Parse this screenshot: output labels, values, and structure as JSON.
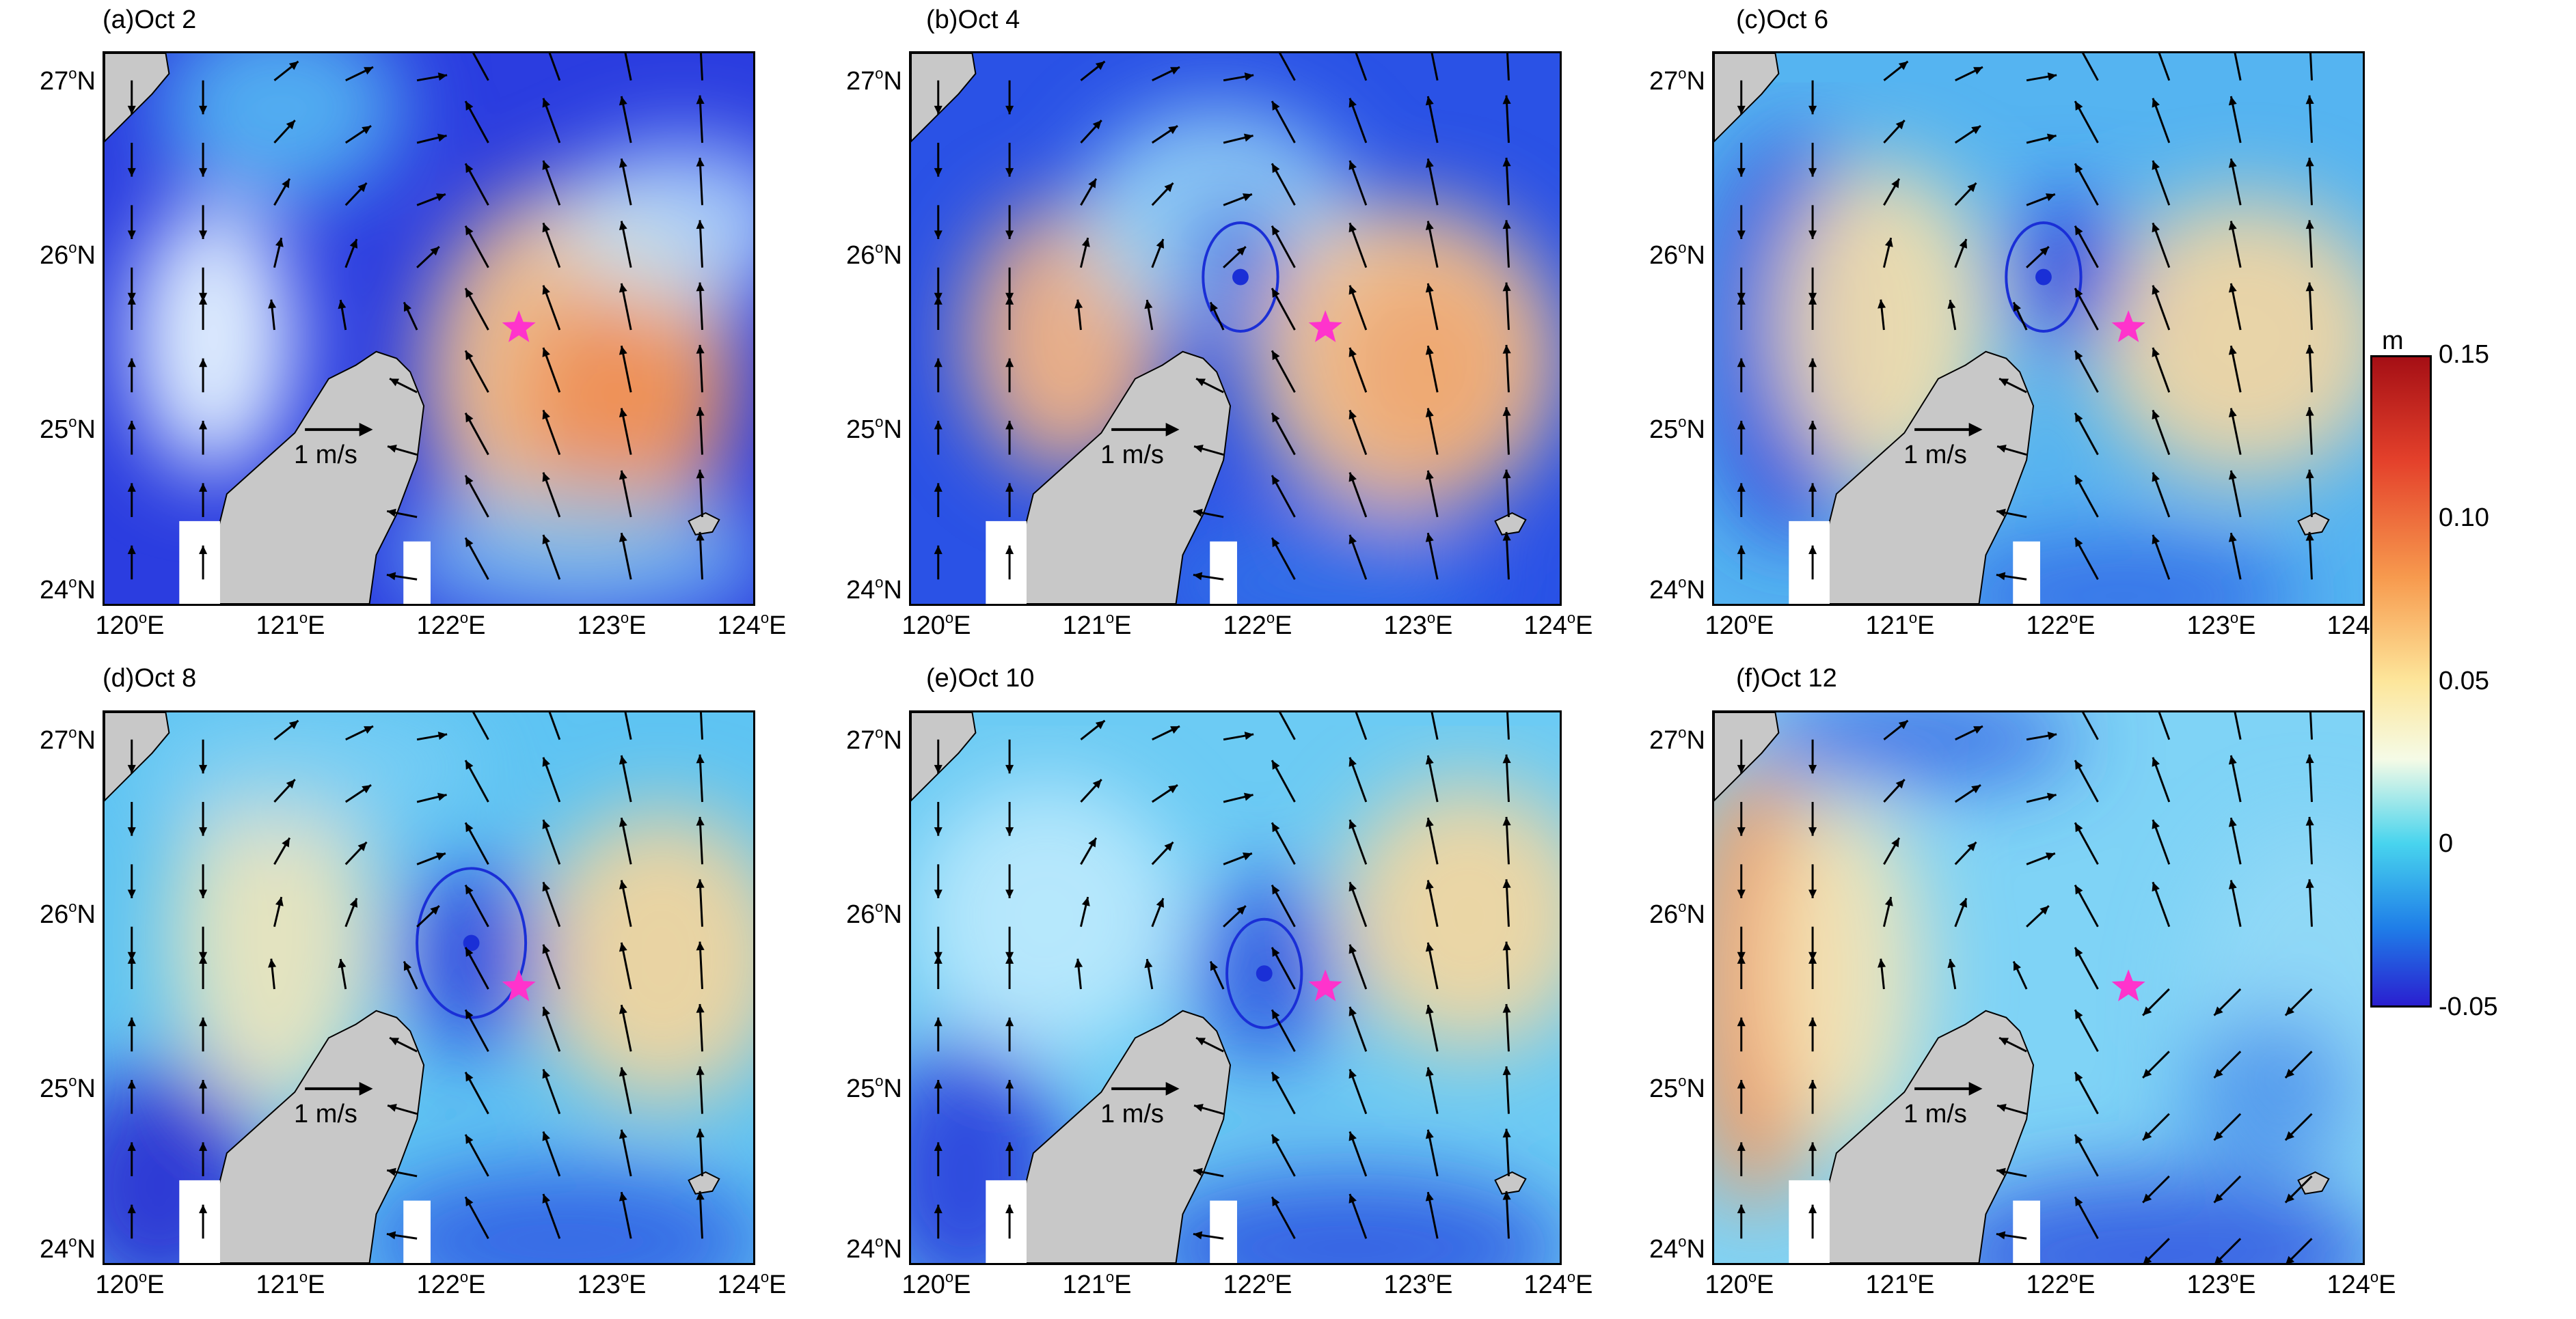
{
  "panels": [
    {
      "title": "(a)Oct 2"
    },
    {
      "title": "(b)Oct 4"
    },
    {
      "title": "(c)Oct 6"
    },
    {
      "title": "(d)Oct 8"
    },
    {
      "title": "(e)Oct 10"
    },
    {
      "title": "(f)Oct 12"
    }
  ],
  "axes": {
    "y_ticks": [
      {
        "deg": "27",
        "hem": "N"
      },
      {
        "deg": "26",
        "hem": "N"
      },
      {
        "deg": "25",
        "hem": "N"
      },
      {
        "deg": "24",
        "hem": "N"
      }
    ],
    "x_ticks": [
      {
        "deg": "120",
        "hem": "E"
      },
      {
        "deg": "121",
        "hem": "E"
      },
      {
        "deg": "122",
        "hem": "E"
      },
      {
        "deg": "123",
        "hem": "E"
      },
      {
        "deg": "124",
        "hem": "E"
      }
    ],
    "degree_symbol": "o"
  },
  "scale_arrow": {
    "label": "1 m/s"
  },
  "colorbar": {
    "unit": "m",
    "ticks": [
      "0.15",
      "0.10",
      "0.05",
      "0",
      "-0.05"
    ],
    "colors": [
      "#a50f15",
      "#e4412b",
      "#f79a4e",
      "#fde69b",
      "#f5fbe6",
      "#48d4ee",
      "#1f7ee8",
      "#2a1fd0"
    ]
  },
  "colors": {
    "land": "#c8c8c8",
    "marker": "#ff33cc",
    "vector": "#000000",
    "eddy_contour": "#1a2fd6"
  }
}
